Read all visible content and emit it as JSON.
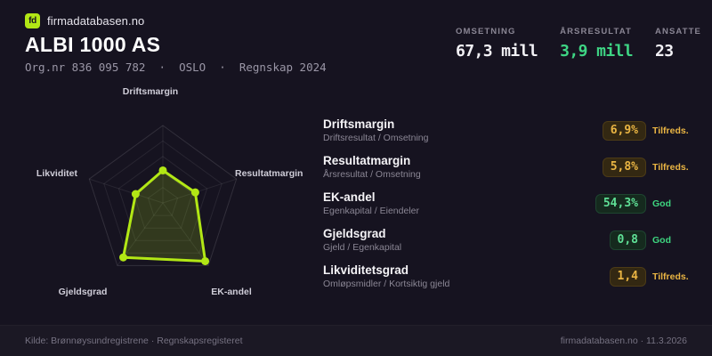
{
  "theme": {
    "background": "#161320",
    "accent_lime": "#b2e715",
    "accent_green": "#3ed584",
    "accent_amber": "#eab543",
    "text_white": "#f2f1f5",
    "text_gray": "#8a8694"
  },
  "header": {
    "logo_text": "fd",
    "brand": "firmadatabasen.no",
    "title": "ALBI 1000 AS",
    "org_line": "Org.nr 836 095 782  ·  OSLO  ·  Regnskap 2024",
    "stats": [
      {
        "label": "OMSETNING",
        "value": "67,3 mill",
        "value_color": "#f2f1f5"
      },
      {
        "label": "ÅRSRESULTAT",
        "value": "3,9 mill",
        "value_color": "#3ed584"
      },
      {
        "label": "ANSATTE",
        "value": "23",
        "value_color": "#f2f1f5"
      }
    ]
  },
  "chart_data": {
    "type": "radar",
    "title": "",
    "categories": [
      "Driftsmargin",
      "Resultatmargin",
      "EK-andel",
      "Gjeldsgrad",
      "Likviditet"
    ],
    "values": [
      0.42,
      0.44,
      0.93,
      0.87,
      0.37
    ],
    "scale": [
      0,
      1
    ],
    "rings": 5,
    "grid_on": true,
    "stroke_color": "#b2e715",
    "fill_color": "rgba(178,231,21,0.18)",
    "grid_color": "rgba(255,255,255,0.08)",
    "outer_grid_color": "rgba(255,255,255,0.12)"
  },
  "metrics": {
    "rows": [
      {
        "title": "Driftsmargin",
        "subtitle": "Driftsresultat / Omsetning",
        "value": "6,9%",
        "status": "Tilfreds.",
        "level": "amber"
      },
      {
        "title": "Resultatmargin",
        "subtitle": "Årsresultat / Omsetning",
        "value": "5,8%",
        "status": "Tilfreds.",
        "level": "amber"
      },
      {
        "title": "EK-andel",
        "subtitle": "Egenkapital / Eiendeler",
        "value": "54,3%",
        "status": "God",
        "level": "green"
      },
      {
        "title": "Gjeldsgrad",
        "subtitle": "Gjeld / Egenkapital",
        "value": "0,8",
        "status": "God",
        "level": "green"
      },
      {
        "title": "Likviditetsgrad",
        "subtitle": "Omløpsmidler / Kortsiktig gjeld",
        "value": "1,4",
        "status": "Tilfreds.",
        "level": "amber"
      }
    ]
  },
  "footer": {
    "source": "Kilde: Brønnøysundregistrene · Regnskapsregisteret",
    "brand_date": "firmadatabasen.no · 11.3.2026"
  }
}
